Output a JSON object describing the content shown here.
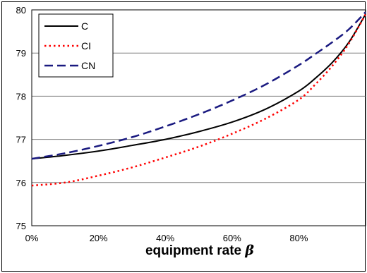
{
  "chart_data": {
    "type": "line",
    "title": "",
    "xlabel": "equipment rate",
    "xlabel_symbol": "β",
    "ylabel": "",
    "xlim": [
      0,
      1
    ],
    "ylim": [
      75,
      80
    ],
    "x_ticks": [
      0,
      0.2,
      0.4,
      0.6,
      0.8
    ],
    "x_tick_labels": [
      "0%",
      "20%",
      "40%",
      "60%",
      "80%"
    ],
    "y_ticks": [
      75,
      76,
      77,
      78,
      79,
      80
    ],
    "y_tick_labels": [
      "75",
      "76",
      "77",
      "78",
      "79",
      "80"
    ],
    "grid": "horizontal",
    "legend_position": "top-left",
    "series": [
      {
        "name": "C",
        "color": "#000000",
        "dash": "solid",
        "x": [
          0,
          0.1,
          0.2,
          0.3,
          0.4,
          0.5,
          0.6,
          0.7,
          0.8,
          0.85,
          0.9,
          0.95,
          1.0
        ],
        "y": [
          76.55,
          76.63,
          76.73,
          76.86,
          77.0,
          77.18,
          77.4,
          77.7,
          78.12,
          78.42,
          78.78,
          79.25,
          79.9
        ]
      },
      {
        "name": "CI",
        "color": "#ff0000",
        "dash": "dot",
        "x": [
          0,
          0.1,
          0.2,
          0.3,
          0.4,
          0.5,
          0.6,
          0.7,
          0.8,
          0.85,
          0.9,
          0.95,
          1.0
        ],
        "y": [
          75.93,
          76.0,
          76.16,
          76.35,
          76.58,
          76.83,
          77.13,
          77.48,
          77.92,
          78.28,
          78.7,
          79.22,
          79.9
        ]
      },
      {
        "name": "CN",
        "color": "#1a1a80",
        "dash": "dash",
        "x": [
          0,
          0.1,
          0.2,
          0.3,
          0.4,
          0.5,
          0.6,
          0.7,
          0.8,
          0.85,
          0.9,
          0.95,
          1.0
        ],
        "y": [
          76.55,
          76.68,
          76.85,
          77.05,
          77.3,
          77.58,
          77.9,
          78.27,
          78.72,
          78.98,
          79.25,
          79.55,
          79.95
        ]
      }
    ]
  }
}
